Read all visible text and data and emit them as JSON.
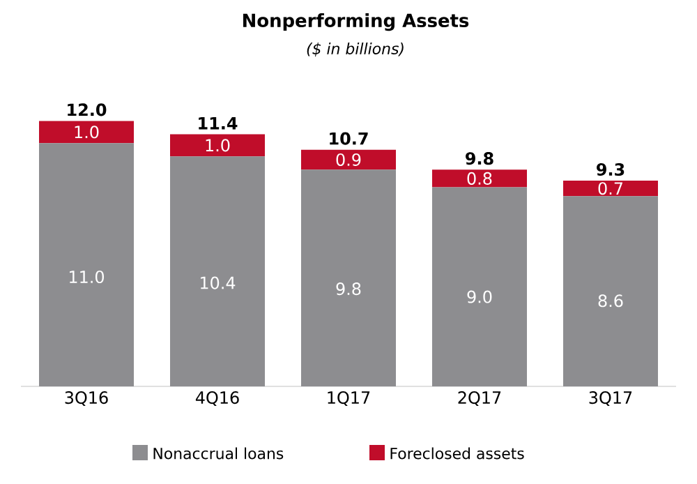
{
  "chart_data": {
    "type": "bar",
    "title": "Nonperforming Assets",
    "subtitle": "($ in billions)",
    "stacked": true,
    "legend": "bottom",
    "categories": [
      "3Q16",
      "4Q16",
      "1Q17",
      "2Q17",
      "3Q17"
    ],
    "series": [
      {
        "name": "Nonaccrual loans",
        "color": "#8d8d90",
        "values": [
          11.0,
          10.4,
          9.8,
          9.0,
          8.6
        ],
        "value_labels": [
          "11.0",
          "10.4",
          "9.8",
          "9.0",
          "8.6"
        ]
      },
      {
        "name": "Foreclosed assets",
        "color": "#c00d2a",
        "values": [
          1.0,
          1.0,
          0.9,
          0.8,
          0.7
        ],
        "value_labels": [
          "1.0",
          "1.0",
          "0.9",
          "0.8",
          "0.7"
        ]
      }
    ],
    "totals": [
      "12.0",
      "11.4",
      "10.7",
      "9.8",
      "9.3"
    ]
  }
}
